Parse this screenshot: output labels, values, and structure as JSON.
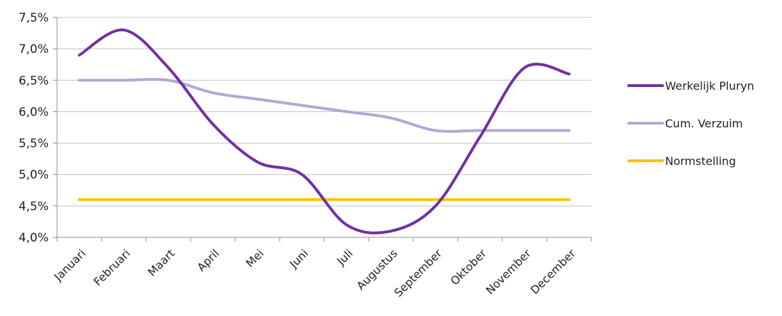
{
  "chart_data": {
    "type": "line",
    "title": "",
    "xlabel": "",
    "ylabel": "",
    "categories": [
      "Januari",
      "Februari",
      "Maart",
      "April",
      "Mei",
      "Juni",
      "Juli",
      "Augustus",
      "September",
      "Oktober",
      "November",
      "December"
    ],
    "y_ticks": [
      "4,0%",
      "4,5%",
      "5,0%",
      "5,5%",
      "6,0%",
      "6,5%",
      "7,0%",
      "7,5%"
    ],
    "ylim": [
      4.0,
      7.5
    ],
    "grid": "horizontal",
    "legend_position": "right",
    "series": [
      {
        "name": "Werkelijk Pluryn",
        "color": "#7030a0",
        "values": [
          6.9,
          7.3,
          6.7,
          5.8,
          5.2,
          5.0,
          4.2,
          4.1,
          4.5,
          5.6,
          6.7,
          6.6
        ]
      },
      {
        "name": "Cum. Verzuim",
        "color": "#b4a7d6",
        "values": [
          6.5,
          6.5,
          6.5,
          6.3,
          6.2,
          6.1,
          6.0,
          5.9,
          5.7,
          5.7,
          5.7,
          5.7
        ]
      },
      {
        "name": "Normstelling",
        "color": "#ffc000",
        "values": [
          4.6,
          4.6,
          4.6,
          4.6,
          4.6,
          4.6,
          4.6,
          4.6,
          4.6,
          4.6,
          4.6,
          4.6
        ]
      }
    ]
  }
}
